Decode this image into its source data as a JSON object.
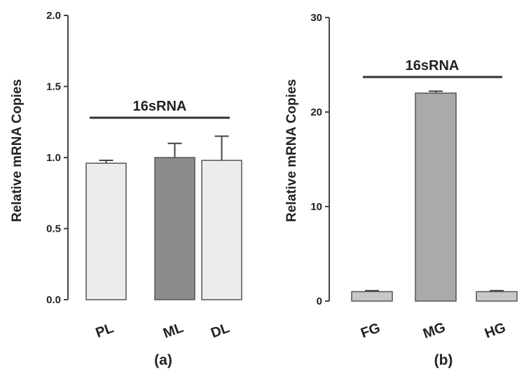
{
  "chart_data": [
    {
      "type": "bar",
      "categories": [
        "PL",
        "ML",
        "DL"
      ],
      "values": [
        0.96,
        1.0,
        0.98
      ],
      "errors": [
        0.02,
        0.1,
        0.17
      ],
      "ylabel": "Relative mRNA Copies",
      "yticks": [
        "0.0",
        "0.5",
        "1.0",
        "1.5",
        "2.0"
      ],
      "ylim": [
        0,
        2.0
      ],
      "annotation": "16sRNA",
      "annotation_level": 1.28,
      "panel_label": "(a)",
      "bar_colors": [
        "#ececec",
        "#8c8c8c",
        "#ececec"
      ]
    },
    {
      "type": "bar",
      "categories": [
        "FG",
        "MG",
        "HG"
      ],
      "values": [
        1.0,
        22.0,
        1.0
      ],
      "errors": [
        0.1,
        0.2,
        0.1
      ],
      "ylabel": "Relative mRNA Copies",
      "yticks": [
        "0",
        "10",
        "20",
        "30"
      ],
      "ylim": [
        0,
        30
      ],
      "annotation": "16sRNA",
      "annotation_level": 23.7,
      "panel_label": "(b)",
      "bar_colors": [
        "#c8c8c8",
        "#aaaaaa",
        "#c8c8c8"
      ]
    }
  ]
}
